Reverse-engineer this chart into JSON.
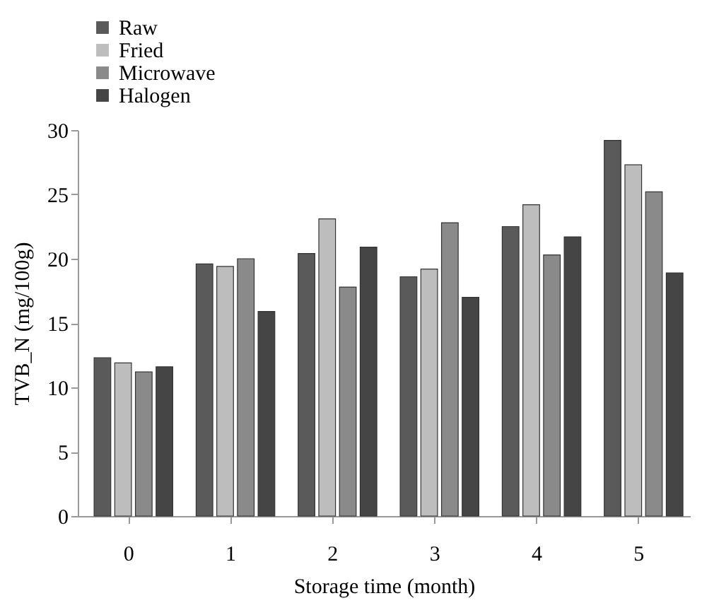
{
  "chart_data": {
    "type": "bar",
    "xlabel": "Storage time (month)",
    "ylabel": "TVB_N (mg/100g)",
    "categories": [
      "0",
      "1",
      "2",
      "3",
      "4",
      "5"
    ],
    "series": [
      {
        "name": "Raw",
        "color": "#5a5a5a",
        "values": [
          12.3,
          19.6,
          20.4,
          18.6,
          22.5,
          29.2
        ]
      },
      {
        "name": "Fried",
        "color": "#bdbdbd",
        "values": [
          11.9,
          19.4,
          23.1,
          19.2,
          24.2,
          27.3
        ]
      },
      {
        "name": "Microwave",
        "color": "#8a8a8a",
        "values": [
          11.2,
          20.0,
          17.8,
          22.8,
          20.3,
          25.2
        ]
      },
      {
        "name": "Halogen",
        "color": "#454545",
        "values": [
          11.6,
          15.9,
          20.9,
          17.0,
          21.7,
          18.9
        ]
      }
    ],
    "ylim": [
      0,
      30
    ],
    "yticks": [
      0,
      5,
      10,
      15,
      20,
      25,
      30
    ],
    "grid": false,
    "legend": "top left"
  }
}
